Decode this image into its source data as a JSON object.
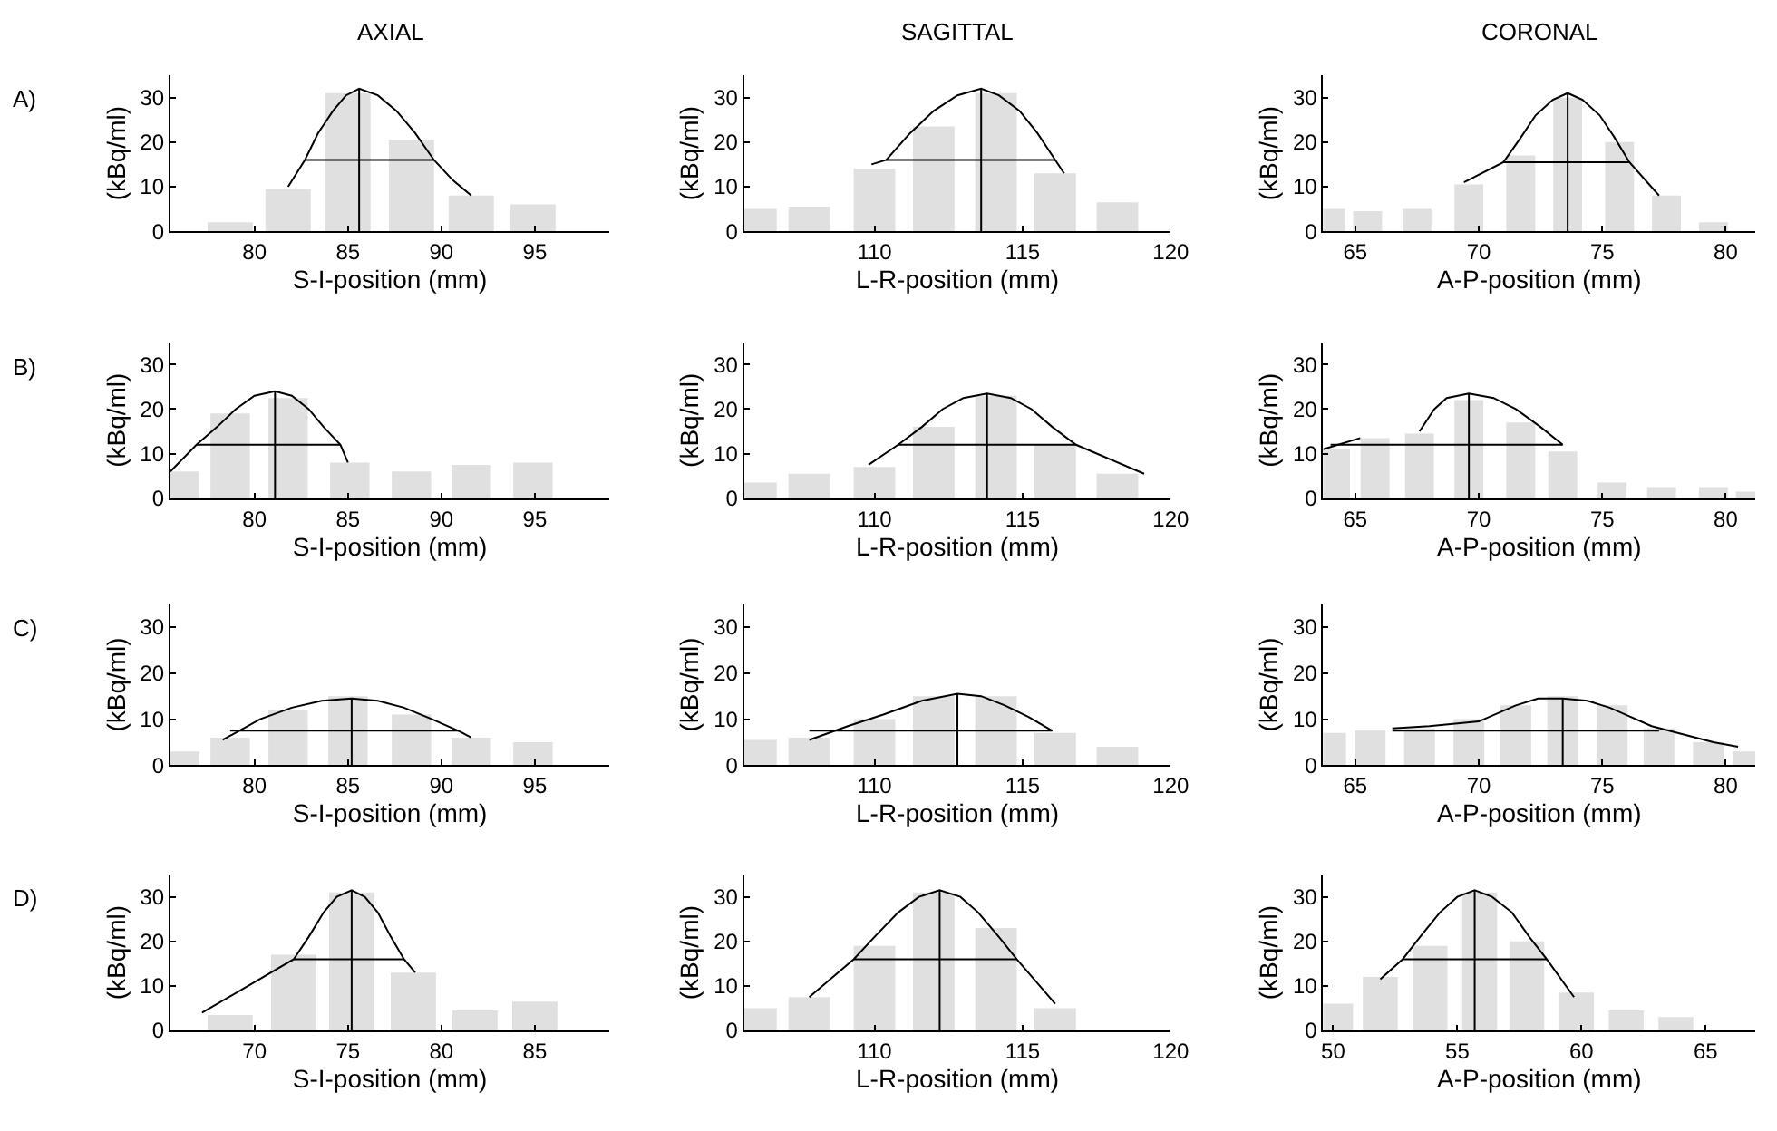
{
  "chart_data": [
    {
      "type": "bar",
      "title": "AXIAL",
      "annotations": [
        "A)"
      ],
      "xlabel": "S-I-position (mm)",
      "ylabel": "(kBq/ml)",
      "xlim": [
        75.5,
        99
      ],
      "xticks": [
        80,
        85,
        90,
        95
      ],
      "ylim": [
        0,
        35
      ],
      "yticks": [
        0,
        10,
        20,
        30
      ],
      "x": [
        78.7,
        81.8,
        85.0,
        88.4,
        91.6,
        94.9
      ],
      "series": [
        {
          "color": "#e0e0e0",
          "values": [
            2,
            9.5,
            31,
            20.5,
            8,
            6
          ]
        },
        {
          "type": "line",
          "color": "#000000",
          "x": [
            81.8,
            82.7,
            83.4,
            84.2,
            84.9,
            85.6,
            86.6,
            87.6,
            88.6,
            89.6,
            90.6,
            91.6
          ],
          "values": [
            10,
            16,
            22,
            27,
            30.5,
            32,
            30.5,
            27,
            22,
            16,
            11.5,
            8
          ]
        },
        {
          "type": "line",
          "color": "#000000",
          "x": [
            82.7,
            89.6
          ],
          "values": [
            16,
            16
          ]
        },
        {
          "type": "line",
          "color": "#000000",
          "x": [
            85.6,
            85.6
          ],
          "values": [
            0,
            32
          ]
        }
      ]
    },
    {
      "type": "bar",
      "title": "SAGITTAL",
      "xlabel": "L-R-position (mm)",
      "ylabel": "(kBq/ml)",
      "xlim": [
        105.6,
        120
      ],
      "xticks": [
        110,
        115,
        120
      ],
      "ylim": [
        0,
        35
      ],
      "yticks": [
        0,
        10,
        20,
        30
      ],
      "x": [
        106.0,
        107.8,
        110.0,
        112.0,
        114.1,
        116.1,
        118.2
      ],
      "series": [
        {
          "color": "#e0e0e0",
          "values": [
            5,
            5.5,
            14,
            23.5,
            31,
            13,
            6.5
          ]
        },
        {
          "type": "line",
          "color": "#000000",
          "x": [
            109.9,
            110.4,
            111.2,
            112.0,
            112.8,
            113.6,
            114.2,
            114.9,
            115.5,
            116.1,
            116.4
          ],
          "values": [
            15,
            16,
            22,
            27,
            30.5,
            32,
            30.5,
            27,
            22,
            16,
            13
          ]
        },
        {
          "type": "line",
          "color": "#000000",
          "x": [
            110.4,
            116.1
          ],
          "values": [
            16,
            16
          ]
        },
        {
          "type": "line",
          "color": "#000000",
          "x": [
            113.6,
            113.6
          ],
          "values": [
            0,
            32
          ]
        }
      ]
    },
    {
      "type": "bar",
      "title": "CORONAL",
      "xlabel": "A-P-position (mm)",
      "ylabel": "(kBq/ml)",
      "xlim": [
        63.7,
        81.2
      ],
      "xticks": [
        65,
        70,
        75,
        80
      ],
      "ylim": [
        0,
        35
      ],
      "yticks": [
        0,
        10,
        20,
        30
      ],
      "x": [
        64.0,
        65.5,
        67.5,
        69.6,
        71.7,
        73.6,
        75.7,
        77.6,
        79.5
      ],
      "series": [
        {
          "color": "#e0e0e0",
          "values": [
            5,
            4.5,
            5,
            10.5,
            17,
            30,
            20,
            8,
            2
          ]
        },
        {
          "type": "line",
          "color": "#000000",
          "x": [
            69.4,
            71.0,
            71.7,
            72.3,
            73.0,
            73.6,
            74.2,
            74.9,
            75.5,
            76.1,
            77.3
          ],
          "values": [
            11,
            15.5,
            21,
            26,
            29.5,
            31,
            29.5,
            26,
            21,
            15.5,
            8
          ]
        },
        {
          "type": "line",
          "color": "#000000",
          "x": [
            71.0,
            76.1
          ],
          "values": [
            15.5,
            15.5
          ]
        },
        {
          "type": "line",
          "color": "#000000",
          "x": [
            73.6,
            73.6
          ],
          "values": [
            0,
            31
          ]
        }
      ]
    },
    {
      "type": "bar",
      "annotations": [
        "B)"
      ],
      "xlabel": "S-I-position (mm)",
      "ylabel": "(kBq/ml)",
      "xlim": [
        75.5,
        99
      ],
      "xticks": [
        80,
        85,
        90,
        95
      ],
      "ylim": [
        0,
        35
      ],
      "yticks": [
        0,
        10,
        20,
        30
      ],
      "x": [
        76.0,
        78.7,
        81.8,
        85.1,
        88.4,
        91.6,
        94.9
      ],
      "series": [
        {
          "color": "#e0e0e0",
          "values": [
            6,
            19,
            22.5,
            8,
            6,
            7.5,
            8
          ]
        },
        {
          "type": "line",
          "color": "#000000",
          "x": [
            75.5,
            76.9,
            78.0,
            79.0,
            80.0,
            81.1,
            82.0,
            82.9,
            83.7,
            84.6,
            85.0
          ],
          "values": [
            6,
            12,
            16,
            20,
            23,
            24,
            23,
            20,
            16,
            12,
            8
          ]
        },
        {
          "type": "line",
          "color": "#000000",
          "x": [
            76.9,
            84.6
          ],
          "values": [
            12,
            12
          ]
        },
        {
          "type": "line",
          "color": "#000000",
          "x": [
            81.1,
            81.1
          ],
          "values": [
            0,
            24
          ]
        }
      ]
    },
    {
      "type": "bar",
      "xlabel": "L-R-position (mm)",
      "ylabel": "(kBq/ml)",
      "xlim": [
        105.6,
        120
      ],
      "xticks": [
        110,
        115,
        120
      ],
      "ylim": [
        0,
        35
      ],
      "yticks": [
        0,
        10,
        20,
        30
      ],
      "x": [
        106.0,
        107.8,
        110.0,
        112.0,
        114.1,
        116.1,
        118.2
      ],
      "series": [
        {
          "color": "#e0e0e0",
          "values": [
            3.5,
            5.5,
            7,
            16,
            23,
            12,
            5.5
          ]
        },
        {
          "type": "line",
          "color": "#000000",
          "x": [
            109.8,
            110.8,
            111.6,
            112.3,
            113.0,
            113.8,
            114.6,
            115.3,
            116.0,
            116.8,
            119.1
          ],
          "values": [
            7.5,
            12,
            16,
            20,
            22.5,
            23.5,
            22.5,
            20,
            16,
            12,
            5.5
          ]
        },
        {
          "type": "line",
          "color": "#000000",
          "x": [
            110.8,
            116.8
          ],
          "values": [
            12,
            12
          ]
        },
        {
          "type": "line",
          "color": "#000000",
          "x": [
            113.8,
            113.8
          ],
          "values": [
            0,
            23.5
          ]
        }
      ]
    },
    {
      "type": "bar",
      "xlabel": "A-P-position (mm)",
      "ylabel": "(kBq/ml)",
      "xlim": [
        63.7,
        81.2
      ],
      "xticks": [
        65,
        70,
        75,
        80
      ],
      "ylim": [
        0,
        35
      ],
      "yticks": [
        0,
        10,
        20,
        30
      ],
      "x": [
        64.2,
        65.8,
        67.6,
        69.6,
        71.7,
        73.4,
        75.4,
        77.4,
        79.5,
        81.0
      ],
      "series": [
        {
          "color": "#e0e0e0",
          "values": [
            11,
            13.5,
            14.5,
            22,
            17,
            10.5,
            3.5,
            2.5,
            2.5,
            1.5
          ]
        },
        {
          "type": "line",
          "color": "#000000",
          "x": [
            67.6,
            68.2,
            68.7,
            69.6,
            70.6,
            71.5,
            72.5,
            73.4
          ],
          "values": [
            15,
            20,
            22.5,
            23.5,
            22.5,
            20,
            16,
            12
          ]
        },
        {
          "type": "line",
          "color": "#000000",
          "x": [
            64.0,
            73.4
          ],
          "values": [
            12,
            12
          ]
        },
        {
          "type": "line",
          "color": "#000000",
          "x": [
            69.6,
            69.6
          ],
          "values": [
            0,
            23.5
          ]
        },
        {
          "type": "line",
          "color": "#000000",
          "x": [
            63.7,
            65.2
          ],
          "values": [
            11,
            13.5
          ]
        }
      ]
    },
    {
      "type": "bar",
      "annotations": [
        "C)"
      ],
      "xlabel": "S-I-position (mm)",
      "ylabel": "(kBq/ml)",
      "xlim": [
        75.5,
        99
      ],
      "xticks": [
        80,
        85,
        90,
        95
      ],
      "ylim": [
        0,
        35
      ],
      "yticks": [
        0,
        10,
        20,
        30
      ],
      "x": [
        76.0,
        78.7,
        81.8,
        85.0,
        88.4,
        91.6,
        94.9
      ],
      "series": [
        {
          "color": "#e0e0e0",
          "values": [
            3,
            6,
            12,
            15,
            11,
            6,
            5
          ]
        },
        {
          "type": "line",
          "color": "#000000",
          "x": [
            78.3,
            80.3,
            82.0,
            83.6,
            85.2,
            86.6,
            88.0,
            89.5,
            90.9,
            91.6
          ],
          "values": [
            5.5,
            10,
            12.5,
            14,
            14.5,
            14,
            12.5,
            10,
            7.5,
            6
          ]
        },
        {
          "type": "line",
          "color": "#000000",
          "x": [
            78.7,
            90.9
          ],
          "values": [
            7.5,
            7.5
          ]
        },
        {
          "type": "line",
          "color": "#000000",
          "x": [
            85.2,
            85.2
          ],
          "values": [
            0,
            14.5
          ]
        }
      ]
    },
    {
      "type": "bar",
      "xlabel": "L-R-position (mm)",
      "ylabel": "(kBq/ml)",
      "xlim": [
        105.6,
        120
      ],
      "xticks": [
        110,
        115,
        120
      ],
      "ylim": [
        0,
        35
      ],
      "yticks": [
        0,
        10,
        20,
        30
      ],
      "x": [
        106.0,
        107.8,
        110.0,
        112.0,
        114.1,
        116.1,
        118.2
      ],
      "series": [
        {
          "color": "#e0e0e0",
          "values": [
            5.5,
            6,
            10,
            15,
            15,
            7,
            4
          ]
        },
        {
          "type": "line",
          "color": "#000000",
          "x": [
            107.8,
            109.1,
            110.3,
            111.6,
            112.8,
            113.6,
            114.4,
            115.2,
            116.0
          ],
          "values": [
            5.5,
            8.5,
            11,
            14,
            15.5,
            15,
            13,
            10.5,
            7.5
          ]
        },
        {
          "type": "line",
          "color": "#000000",
          "x": [
            107.8,
            116.0
          ],
          "values": [
            7.5,
            7.5
          ]
        },
        {
          "type": "line",
          "color": "#000000",
          "x": [
            112.8,
            112.8
          ],
          "values": [
            0,
            15.5
          ]
        }
      ]
    },
    {
      "type": "bar",
      "xlabel": "A-P-position (mm)",
      "ylabel": "(kBq/ml)",
      "xlim": [
        63.7,
        81.2
      ],
      "xticks": [
        65,
        70,
        75,
        80
      ],
      "ylim": [
        0,
        35
      ],
      "yticks": [
        0,
        10,
        20,
        30
      ],
      "x": [
        64.0,
        65.6,
        67.6,
        69.6,
        71.5,
        73.4,
        75.4,
        77.3,
        79.3,
        80.9
      ],
      "series": [
        {
          "color": "#e0e0e0",
          "values": [
            7,
            7.5,
            8,
            10,
            13,
            15,
            13,
            8,
            5,
            3
          ]
        },
        {
          "type": "line",
          "color": "#000000",
          "x": [
            66.5,
            68.0,
            70.0,
            71.5,
            72.4,
            73.4,
            74.4,
            75.3,
            77.0,
            79.5,
            80.5
          ],
          "values": [
            8,
            8.5,
            9.5,
            13,
            14.5,
            14.5,
            14,
            12.5,
            8.5,
            5,
            4
          ]
        },
        {
          "type": "line",
          "color": "#000000",
          "x": [
            66.5,
            77.3
          ],
          "values": [
            7.5,
            7.5
          ]
        },
        {
          "type": "line",
          "color": "#000000",
          "x": [
            73.4,
            73.4
          ],
          "values": [
            0,
            14.5
          ]
        }
      ]
    },
    {
      "type": "bar",
      "annotations": [
        "D)"
      ],
      "xlabel": "S-I-position (mm)",
      "ylabel": "(kBq/ml)",
      "xlim": [
        65.5,
        89
      ],
      "xticks": [
        70,
        75,
        80,
        85
      ],
      "ylim": [
        0,
        35
      ],
      "yticks": [
        0,
        10,
        20,
        30
      ],
      "x": [
        68.7,
        72.1,
        75.2,
        78.5,
        81.8,
        85.0
      ],
      "series": [
        {
          "color": "#e0e0e0",
          "values": [
            3.5,
            17,
            31,
            13,
            4.5,
            6.5
          ]
        },
        {
          "type": "line",
          "color": "#000000",
          "x": [
            67.2,
            72.1,
            72.9,
            73.7,
            74.4,
            75.2,
            75.9,
            76.6,
            77.3,
            78.0,
            78.6
          ],
          "values": [
            4,
            16,
            21,
            26.5,
            30,
            31.5,
            30,
            26.5,
            21,
            16,
            13
          ]
        },
        {
          "type": "line",
          "color": "#000000",
          "x": [
            72.1,
            78.0
          ],
          "values": [
            16,
            16
          ]
        },
        {
          "type": "line",
          "color": "#000000",
          "x": [
            75.2,
            75.2
          ],
          "values": [
            0,
            31.5
          ]
        }
      ]
    },
    {
      "type": "bar",
      "xlabel": "L-R-position (mm)",
      "ylabel": "(kBq/ml)",
      "xlim": [
        105.6,
        120
      ],
      "xticks": [
        110,
        115,
        120
      ],
      "ylim": [
        0,
        35
      ],
      "yticks": [
        0,
        10,
        20,
        30
      ],
      "x": [
        106.0,
        107.8,
        110.0,
        112.0,
        114.1,
        116.1
      ],
      "series": [
        {
          "color": "#e0e0e0",
          "values": [
            5,
            7.5,
            19,
            31,
            23,
            5
          ]
        },
        {
          "type": "line",
          "color": "#000000",
          "x": [
            107.8,
            109.3,
            110.0,
            110.8,
            111.5,
            112.2,
            112.9,
            113.5,
            114.2,
            114.8,
            116.1
          ],
          "values": [
            7.5,
            16,
            21,
            26.5,
            30,
            31.5,
            30,
            26.5,
            21,
            16,
            6
          ]
        },
        {
          "type": "line",
          "color": "#000000",
          "x": [
            109.3,
            114.8
          ],
          "values": [
            16,
            16
          ]
        },
        {
          "type": "line",
          "color": "#000000",
          "x": [
            112.2,
            112.2
          ],
          "values": [
            0,
            31.5
          ]
        }
      ]
    },
    {
      "type": "bar",
      "xlabel": "A-P-position (mm)",
      "ylabel": "(kBq/ml)",
      "xlim": [
        49.6,
        67.0
      ],
      "xticks": [
        50,
        55,
        60,
        65
      ],
      "ylim": [
        0,
        35
      ],
      "yticks": [
        0,
        10,
        20,
        30
      ],
      "x": [
        50.1,
        51.9,
        53.9,
        55.9,
        57.8,
        59.8,
        61.8,
        63.8
      ],
      "series": [
        {
          "color": "#e0e0e0",
          "values": [
            6,
            12,
            19,
            31,
            20,
            8.5,
            4.5,
            3
          ]
        },
        {
          "type": "line",
          "color": "#000000",
          "x": [
            51.9,
            52.8,
            53.5,
            54.3,
            55.0,
            55.7,
            56.4,
            57.2,
            57.9,
            58.6,
            59.7
          ],
          "values": [
            11.5,
            16,
            21,
            26.5,
            30,
            31.5,
            30,
            26.5,
            21,
            16,
            7.5
          ]
        },
        {
          "type": "line",
          "color": "#000000",
          "x": [
            52.8,
            58.6
          ],
          "values": [
            16,
            16
          ]
        },
        {
          "type": "line",
          "color": "#000000",
          "x": [
            55.7,
            55.7
          ],
          "values": [
            0,
            31.5
          ]
        }
      ]
    }
  ]
}
